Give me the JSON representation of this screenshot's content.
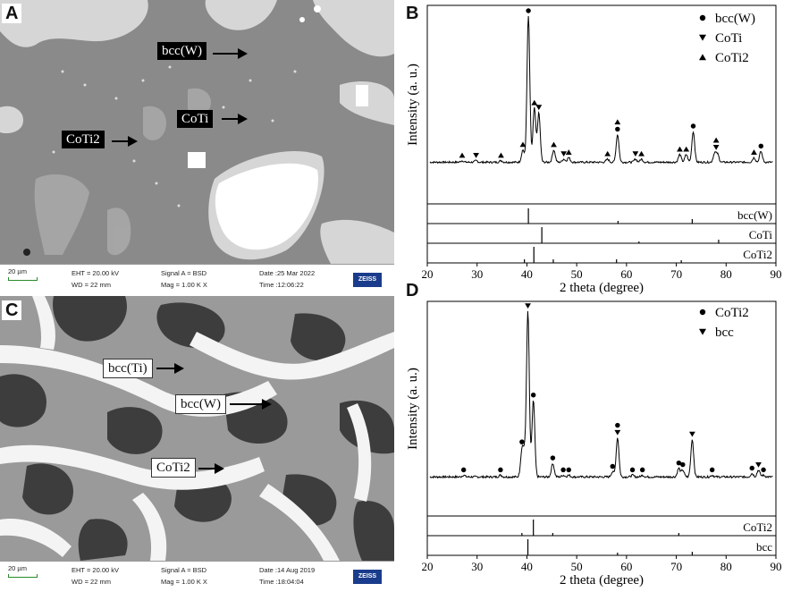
{
  "panels": {
    "A": {
      "letter": "A",
      "labels": [
        "bcc(W)",
        "CoTi",
        "CoTi2"
      ],
      "info": {
        "scale": "20 µm",
        "eht": "EHT = 20.00 kV",
        "wd": "WD =  22 mm",
        "signal": "Signal A = BSD",
        "mag": "Mag =    1.00 K X",
        "date": "Date :25 Mar 2022",
        "time": "Time :12:06:22",
        "logo": "ZEISS"
      }
    },
    "B": {
      "letter": "B",
      "ylabel": "Intensity (a. u.)",
      "xlabel": "2 theta (degree)",
      "legend": [
        {
          "symbol": "circle",
          "label": "bcc(W)"
        },
        {
          "symbol": "tri-down",
          "label": "CoTi"
        },
        {
          "symbol": "tri-up",
          "label": "CoTi2"
        }
      ]
    },
    "C": {
      "letter": "C",
      "labels": [
        "bcc(Ti)",
        "bcc(W)",
        "CoTi2"
      ],
      "info": {
        "scale": "20 µm",
        "eht": "EHT = 20.00 kV",
        "wd": "WD =  22 mm",
        "signal": "Signal A = BSD",
        "mag": "Mag =    1.00 K X",
        "date": "Date :14 Aug 2019",
        "time": "Time :18:04:04",
        "logo": "ZEISS"
      }
    },
    "D": {
      "letter": "D",
      "ylabel": "Intensity (a. u.)",
      "xlabel": "2 theta (degree)",
      "legend": [
        {
          "symbol": "circle",
          "label": "CoTi2"
        },
        {
          "symbol": "tri-down",
          "label": "bcc"
        }
      ]
    }
  },
  "chart_data": [
    {
      "type": "line",
      "panel": "B",
      "xlabel": "2 theta (degree)",
      "ylabel": "Intensity (a. u.)",
      "xlim": [
        20,
        90
      ],
      "xticks": [
        20,
        30,
        40,
        50,
        60,
        70,
        80,
        90
      ],
      "baseline": 0.05,
      "peaks": [
        {
          "x": 27.0,
          "h": 0.01
        },
        {
          "x": 29.8,
          "h": 0.01
        },
        {
          "x": 34.8,
          "h": 0.01
        },
        {
          "x": 39.2,
          "h": 0.08
        },
        {
          "x": 40.3,
          "h": 0.95
        },
        {
          "x": 41.5,
          "h": 0.35
        },
        {
          "x": 42.4,
          "h": 0.32
        },
        {
          "x": 45.4,
          "h": 0.08
        },
        {
          "x": 47.4,
          "h": 0.02
        },
        {
          "x": 48.4,
          "h": 0.03
        },
        {
          "x": 56.2,
          "h": 0.02
        },
        {
          "x": 58.2,
          "h": 0.18
        },
        {
          "x": 61.8,
          "h": 0.02
        },
        {
          "x": 63.0,
          "h": 0.02
        },
        {
          "x": 70.7,
          "h": 0.05
        },
        {
          "x": 72.0,
          "h": 0.05
        },
        {
          "x": 73.4,
          "h": 0.2
        },
        {
          "x": 77.7,
          "h": 0.06
        },
        {
          "x": 78.3,
          "h": 0.05
        },
        {
          "x": 85.6,
          "h": 0.03
        },
        {
          "x": 87.0,
          "h": 0.07
        }
      ],
      "markers": [
        {
          "x": 40.3,
          "s": [
            "circle"
          ]
        },
        {
          "x": 41.5,
          "s": [
            "tri-up"
          ]
        },
        {
          "x": 42.4,
          "s": [
            "tri-down"
          ]
        },
        {
          "x": 39.2,
          "s": [
            "tri-up"
          ]
        },
        {
          "x": 45.4,
          "s": [
            "tri-up"
          ]
        },
        {
          "x": 58.2,
          "s": [
            "circle",
            "tri-up"
          ]
        },
        {
          "x": 73.4,
          "s": [
            "circle"
          ]
        },
        {
          "x": 78.0,
          "s": [
            "tri-down",
            "tri-up"
          ]
        },
        {
          "x": 87.0,
          "s": [
            "circle"
          ]
        },
        {
          "x": 27.0,
          "s": [
            "tri-up"
          ]
        },
        {
          "x": 29.8,
          "s": [
            "tri-down"
          ]
        },
        {
          "x": 34.8,
          "s": [
            "tri-up"
          ]
        },
        {
          "x": 47.4,
          "s": [
            "tri-down"
          ]
        },
        {
          "x": 48.4,
          "s": [
            "tri-up"
          ]
        },
        {
          "x": 56.2,
          "s": [
            "tri-up"
          ]
        },
        {
          "x": 61.8,
          "s": [
            "tri-down"
          ]
        },
        {
          "x": 63.0,
          "s": [
            "tri-up"
          ]
        },
        {
          "x": 70.7,
          "s": [
            "tri-up"
          ]
        },
        {
          "x": 72.0,
          "s": [
            "tri-up"
          ]
        },
        {
          "x": 85.6,
          "s": [
            "tri-up"
          ]
        }
      ],
      "references": [
        {
          "label": "bcc(W)",
          "lines": [
            {
              "x": 40.3,
              "h": 0.85
            },
            {
              "x": 58.3,
              "h": 0.15
            },
            {
              "x": 73.2,
              "h": 0.25
            }
          ]
        },
        {
          "label": "CoTi",
          "lines": [
            {
              "x": 43.0,
              "h": 0.9
            },
            {
              "x": 62.5,
              "h": 0.1
            },
            {
              "x": 78.5,
              "h": 0.2
            }
          ]
        },
        {
          "label": "CoTi2",
          "lines": [
            {
              "x": 41.4,
              "h": 0.9
            },
            {
              "x": 39.5,
              "h": 0.2
            },
            {
              "x": 45.3,
              "h": 0.2
            },
            {
              "x": 58.0,
              "h": 0.2
            },
            {
              "x": 71.0,
              "h": 0.15
            }
          ]
        }
      ]
    },
    {
      "type": "line",
      "panel": "D",
      "xlabel": "2 theta (degree)",
      "ylabel": "Intensity (a. u.)",
      "xlim": [
        20,
        90
      ],
      "xticks": [
        20,
        30,
        40,
        50,
        60,
        70,
        80,
        90
      ],
      "baseline": 0.03,
      "peaks": [
        {
          "x": 27.3,
          "h": 0.01
        },
        {
          "x": 34.7,
          "h": 0.01
        },
        {
          "x": 39.0,
          "h": 0.15
        },
        {
          "x": 39.5,
          "h": 0.12
        },
        {
          "x": 40.2,
          "h": 0.97
        },
        {
          "x": 41.3,
          "h": 0.45
        },
        {
          "x": 45.2,
          "h": 0.08
        },
        {
          "x": 47.3,
          "h": 0.01
        },
        {
          "x": 48.4,
          "h": 0.01
        },
        {
          "x": 57.2,
          "h": 0.03
        },
        {
          "x": 58.2,
          "h": 0.23
        },
        {
          "x": 61.2,
          "h": 0.01
        },
        {
          "x": 63.2,
          "h": 0.01
        },
        {
          "x": 70.5,
          "h": 0.05
        },
        {
          "x": 71.3,
          "h": 0.04
        },
        {
          "x": 73.2,
          "h": 0.22
        },
        {
          "x": 77.2,
          "h": 0.01
        },
        {
          "x": 85.2,
          "h": 0.02
        },
        {
          "x": 86.5,
          "h": 0.04
        },
        {
          "x": 87.5,
          "h": 0.01
        }
      ],
      "markers": [
        {
          "x": 40.2,
          "s": [
            "tri-down"
          ]
        },
        {
          "x": 41.3,
          "s": [
            "circle"
          ]
        },
        {
          "x": 39.0,
          "s": [
            "circle"
          ]
        },
        {
          "x": 45.2,
          "s": [
            "circle"
          ]
        },
        {
          "x": 58.2,
          "s": [
            "tri-down",
            "circle"
          ]
        },
        {
          "x": 73.2,
          "s": [
            "tri-down"
          ]
        },
        {
          "x": 86.5,
          "s": [
            "tri-down"
          ]
        },
        {
          "x": 27.3,
          "s": [
            "circle"
          ]
        },
        {
          "x": 34.7,
          "s": [
            "circle"
          ]
        },
        {
          "x": 47.3,
          "s": [
            "circle"
          ]
        },
        {
          "x": 48.4,
          "s": [
            "circle"
          ]
        },
        {
          "x": 57.2,
          "s": [
            "circle"
          ]
        },
        {
          "x": 61.2,
          "s": [
            "circle"
          ]
        },
        {
          "x": 63.2,
          "s": [
            "circle"
          ]
        },
        {
          "x": 70.5,
          "s": [
            "circle"
          ]
        },
        {
          "x": 71.3,
          "s": [
            "circle"
          ]
        },
        {
          "x": 77.2,
          "s": [
            "circle"
          ]
        },
        {
          "x": 85.2,
          "s": [
            "circle"
          ]
        },
        {
          "x": 87.5,
          "s": [
            "circle"
          ]
        }
      ],
      "references": [
        {
          "label": "CoTi2",
          "lines": [
            {
              "x": 41.3,
              "h": 0.9
            },
            {
              "x": 39.0,
              "h": 0.15
            },
            {
              "x": 45.2,
              "h": 0.15
            },
            {
              "x": 70.5,
              "h": 0.15
            }
          ]
        },
        {
          "label": "bcc",
          "lines": [
            {
              "x": 40.2,
              "h": 0.9
            },
            {
              "x": 58.2,
              "h": 0.15
            },
            {
              "x": 73.2,
              "h": 0.2
            }
          ]
        }
      ]
    }
  ]
}
